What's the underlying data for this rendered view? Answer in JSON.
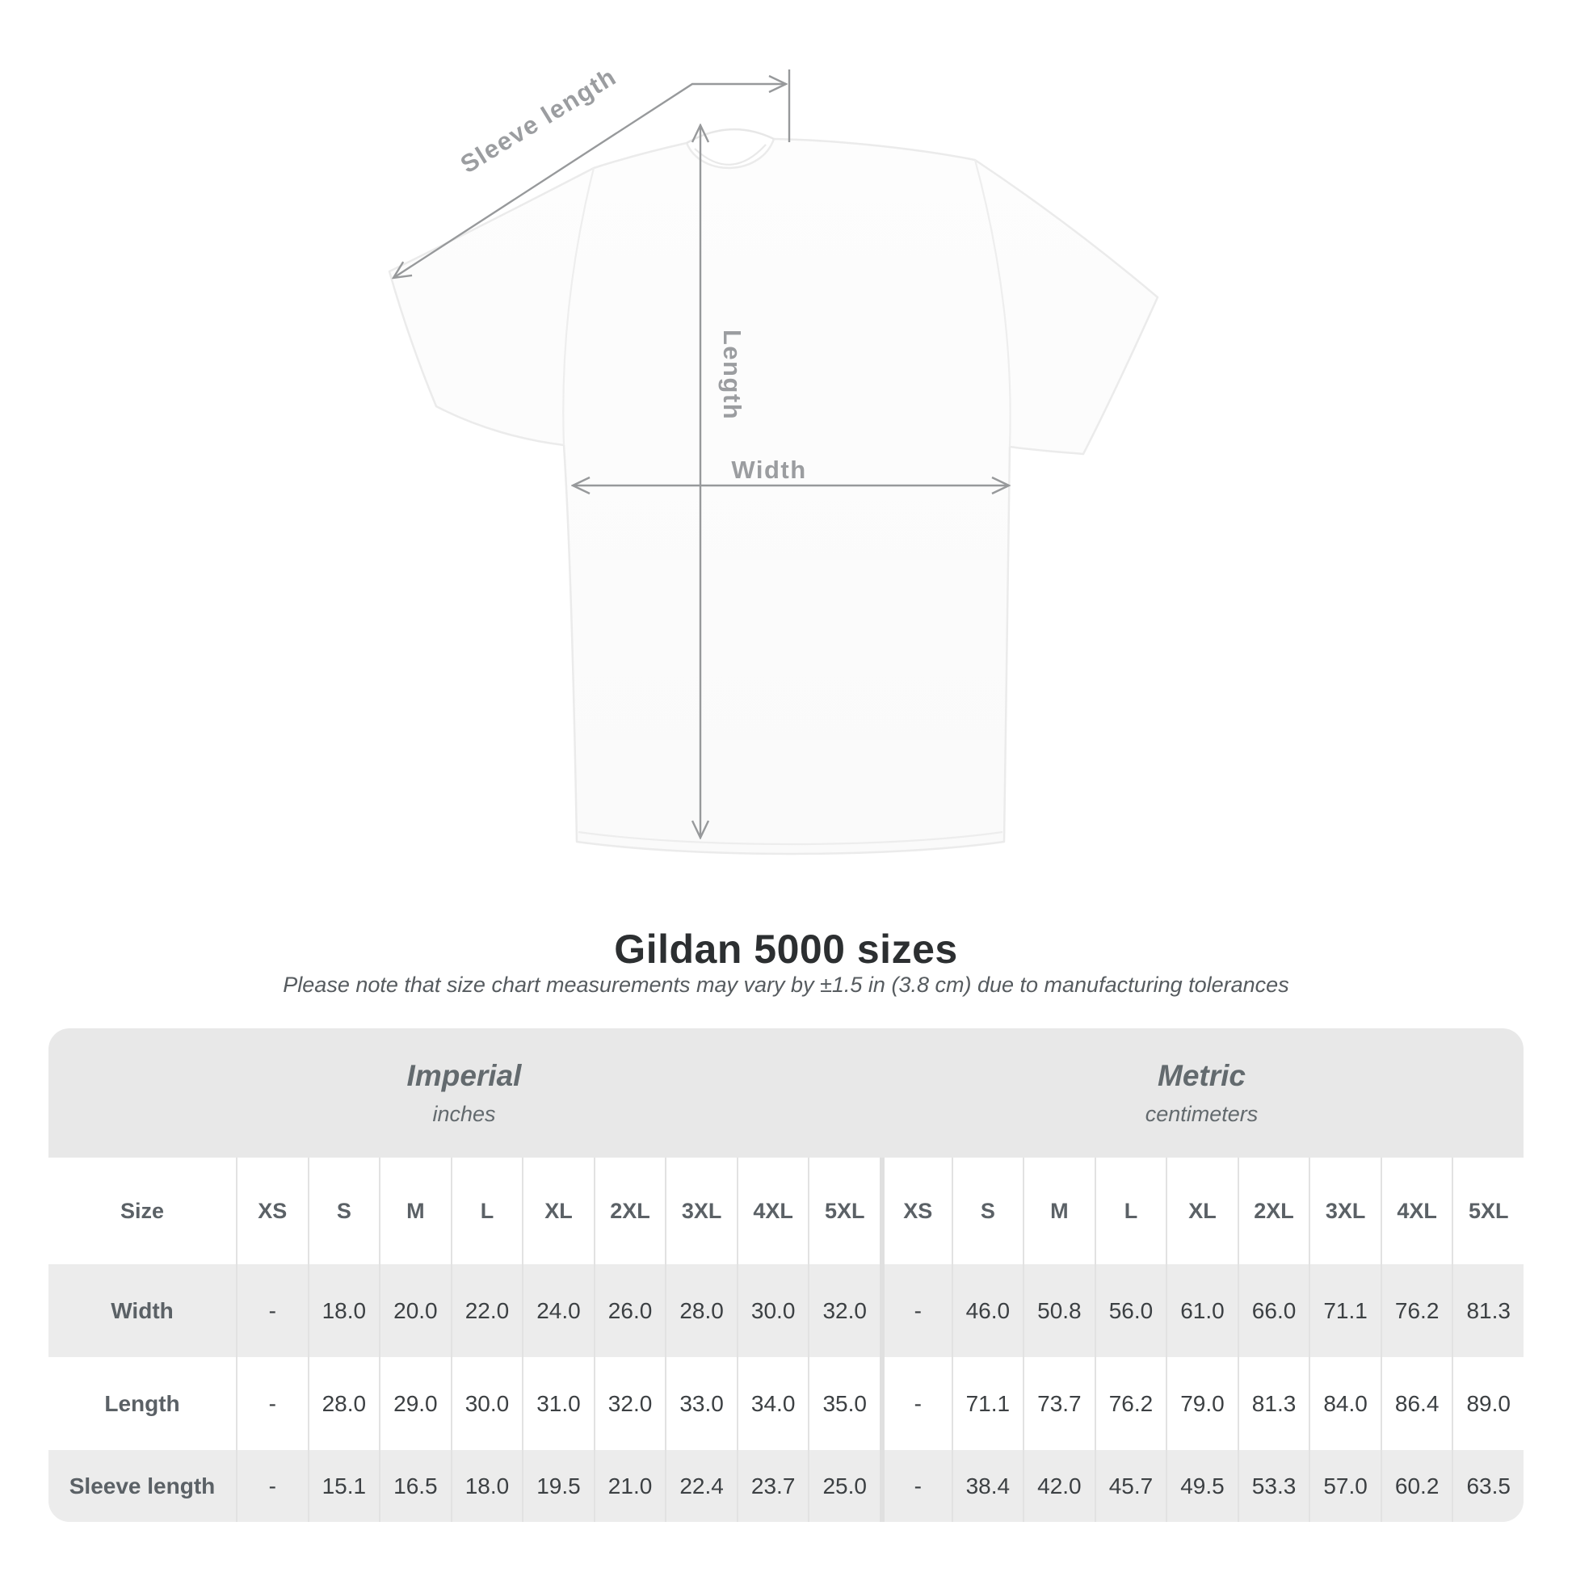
{
  "page": {
    "title": "Gildan 5000 sizes",
    "subtitle": "Please note that size chart measurements may vary by ±1.5 in (3.8 cm) due to manufacturing tolerances"
  },
  "diagram": {
    "labels": {
      "sleeve_length": "Sleeve length",
      "length": "Length",
      "width": "Width"
    }
  },
  "table": {
    "unit_groups": [
      {
        "label": "Imperial",
        "units": "inches"
      },
      {
        "label": "Metric",
        "units": "centimeters"
      }
    ],
    "corner_header": "Size",
    "sizes": [
      "XS",
      "S",
      "M",
      "L",
      "XL",
      "2XL",
      "3XL",
      "4XL",
      "5XL"
    ],
    "rows": [
      {
        "label": "Width",
        "imperial": [
          "-",
          "18.0",
          "20.0",
          "22.0",
          "24.0",
          "26.0",
          "28.0",
          "30.0",
          "32.0"
        ],
        "metric": [
          "-",
          "46.0",
          "50.8",
          "56.0",
          "61.0",
          "66.0",
          "71.1",
          "76.2",
          "81.3"
        ]
      },
      {
        "label": "Length",
        "imperial": [
          "-",
          "28.0",
          "29.0",
          "30.0",
          "31.0",
          "32.0",
          "33.0",
          "34.0",
          "35.0"
        ],
        "metric": [
          "-",
          "71.1",
          "73.7",
          "76.2",
          "79.0",
          "81.3",
          "84.0",
          "86.4",
          "89.0"
        ]
      },
      {
        "label": "Sleeve length",
        "imperial": [
          "-",
          "15.1",
          "16.5",
          "18.0",
          "19.5",
          "21.0",
          "22.4",
          "23.7",
          "25.0"
        ],
        "metric": [
          "-",
          "38.4",
          "42.0",
          "45.7",
          "49.5",
          "53.3",
          "57.0",
          "60.2",
          "63.5"
        ]
      }
    ]
  },
  "colors": {
    "annotation_gray": "#97999b",
    "annotation_text": "#9b9da0",
    "band_gray": "#e8e8e8",
    "row_alt_gray": "#ececec",
    "title_text": "#2c2f31",
    "muted_text": "#565b5f",
    "value_text": "#3c4043",
    "header_text": "#5b6166"
  }
}
